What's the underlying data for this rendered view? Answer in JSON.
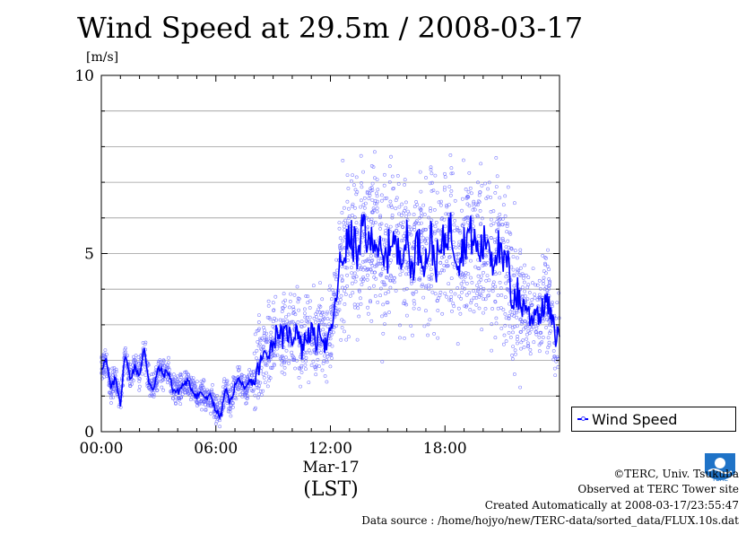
{
  "title": "Wind Speed at 29.5m / 2008-03-17",
  "y_unit": "[m/s]",
  "x_date_label": "Mar-17",
  "x_axis_label": "(LST)",
  "legend_label": "Wind Speed",
  "credits": {
    "line1": "©TERC, Univ. Tsukuba",
    "line2": "Observed at TERC Tower site",
    "line3": "Created Automatically at 2008-03-17/23:55:47",
    "line4": "Data source : /home/hojyo/new/TERC-data/sorted_data/FLUX.10s.dat"
  },
  "logo_text": "TERC",
  "colors": {
    "line": "#0000ff",
    "points": "#6a6aff",
    "grid": "#9a9a9a",
    "logo": "#1f73c7"
  },
  "chart_data": {
    "type": "line",
    "title": "Wind Speed at 29.5m / 2008-03-17",
    "ylabel": "[m/s]",
    "xlabel": "(LST)",
    "ylim": [
      0,
      10
    ],
    "xlim_hours": [
      0,
      24
    ],
    "y_ticks": [
      "0",
      "5",
      "10"
    ],
    "x_ticks": [
      "00:00",
      "06:00",
      "12:00",
      "18:00"
    ],
    "grid": true,
    "legend_position": "bottom-right, outside plot",
    "series": [
      {
        "name": "Wind Speed",
        "style": "line with scatter of raw 10s samples",
        "x_hours": [
          0,
          0.25,
          0.5,
          0.75,
          1.0,
          1.25,
          1.5,
          1.75,
          2.0,
          2.25,
          2.5,
          2.75,
          3.0,
          3.25,
          3.5,
          3.75,
          4.0,
          4.25,
          4.5,
          4.75,
          5.0,
          5.25,
          5.5,
          5.75,
          6.0,
          6.25,
          6.5,
          6.75,
          7.0,
          7.25,
          7.5,
          7.75,
          8.0,
          8.25,
          8.5,
          8.75,
          9.0,
          9.25,
          9.5,
          9.75,
          10.0,
          10.25,
          10.5,
          10.75,
          11.0,
          11.25,
          11.5,
          11.75,
          12.0,
          12.25,
          12.5,
          12.75,
          13.0,
          13.25,
          13.5,
          13.75,
          14.0,
          14.25,
          14.5,
          14.75,
          15.0,
          15.25,
          15.5,
          15.75,
          16.0,
          16.25,
          16.5,
          16.75,
          17.0,
          17.25,
          17.5,
          17.75,
          18.0,
          18.25,
          18.5,
          18.75,
          19.0,
          19.25,
          19.5,
          19.75,
          20.0,
          20.25,
          20.5,
          20.75,
          21.0,
          21.25,
          21.5,
          21.75,
          22.0,
          22.25,
          22.5,
          22.75,
          23.0,
          23.25,
          23.5,
          23.75
        ],
        "values": [
          1.8,
          2.0,
          1.2,
          1.5,
          0.8,
          2.2,
          1.5,
          1.8,
          1.6,
          2.3,
          1.4,
          1.2,
          1.8,
          1.6,
          1.7,
          1.2,
          1.1,
          1.3,
          1.4,
          1.2,
          1.0,
          1.1,
          0.9,
          1.0,
          0.6,
          0.4,
          1.2,
          0.8,
          1.3,
          1.5,
          1.1,
          1.4,
          1.4,
          1.8,
          2.1,
          2.3,
          2.5,
          2.9,
          2.6,
          2.8,
          2.6,
          3.0,
          2.3,
          2.7,
          2.8,
          2.5,
          2.9,
          2.4,
          2.7,
          3.5,
          4.6,
          5.1,
          5.4,
          5.3,
          4.8,
          6.0,
          5.1,
          5.6,
          5.2,
          4.6,
          5.0,
          5.6,
          4.9,
          5.2,
          5.4,
          4.5,
          5.3,
          5.1,
          4.8,
          5.5,
          4.7,
          5.0,
          5.4,
          5.8,
          5.2,
          4.9,
          5.3,
          5.6,
          5.4,
          5.0,
          5.2,
          5.5,
          4.8,
          5.3,
          4.6,
          4.8,
          3.8,
          3.9,
          3.5,
          3.6,
          3.1,
          3.5,
          3.2,
          3.7,
          3.4,
          2.7
        ]
      }
    ],
    "scatter_spread_by_hour": [
      {
        "from": 0,
        "to": 8,
        "half_width": 0.5
      },
      {
        "from": 8,
        "to": 12.5,
        "half_width": 1.4
      },
      {
        "from": 12.5,
        "to": 22,
        "half_width": 2.6
      },
      {
        "from": 22,
        "to": 24,
        "half_width": 1.6
      }
    ]
  }
}
